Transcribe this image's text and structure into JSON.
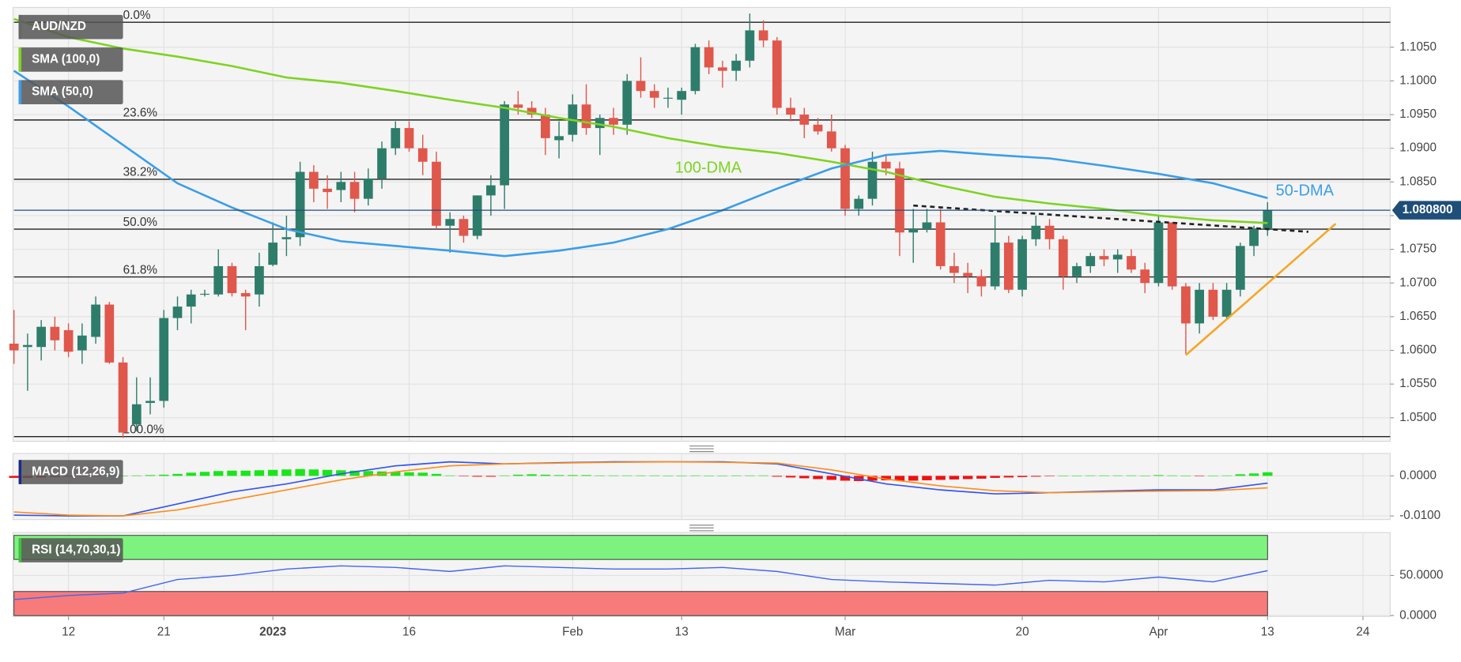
{
  "chart_data": [
    {
      "type": "candlestick",
      "title": "AUD/NZD",
      "title_color": "#666666",
      "xlim": [
        0,
        101
      ],
      "ylim": [
        1.0465,
        1.1109
      ],
      "grid": true,
      "yticks": [
        {
          "value": 1.05,
          "label": "1.0500"
        },
        {
          "value": 1.055,
          "label": "1.0550"
        },
        {
          "value": 1.06,
          "label": "1.0600"
        },
        {
          "value": 1.065,
          "label": "1.0650"
        },
        {
          "value": 1.07,
          "label": "1.0700"
        },
        {
          "value": 1.075,
          "label": "1.0750"
        },
        {
          "value": 1.08,
          "label": "1.0800"
        },
        {
          "value": 1.085,
          "label": "1.0850"
        },
        {
          "value": 1.09,
          "label": "1.0900"
        },
        {
          "value": 1.095,
          "label": "1.0950"
        },
        {
          "value": 1.1,
          "label": "1.1000"
        },
        {
          "value": 1.105,
          "label": "1.1050"
        }
      ],
      "up_color": "#2e7d6b",
      "down_color": "#e0574c",
      "open": [
        1.061,
        1.0605,
        1.0605,
        1.0635,
        1.063,
        1.06,
        1.062,
        1.0668,
        1.0582,
        1.049,
        1.0522,
        1.0525,
        1.0648,
        1.0665,
        1.0683,
        1.0683,
        1.0725,
        1.0685,
        1.0683,
        1.0727,
        1.0765,
        1.0768,
        1.0865,
        1.084,
        1.0838,
        1.085,
        1.0825,
        1.0855,
        1.09,
        1.093,
        1.09,
        1.088,
        1.0785,
        1.0795,
        1.077,
        1.083,
        1.0845,
        1.0965,
        1.096,
        1.095,
        1.0912,
        1.092,
        1.0965,
        1.093,
        1.0945,
        1.0935,
        1.1,
        1.0985,
        1.0975,
        1.0972,
        1.0985,
        1.105,
        1.102,
        1.1015,
        1.103,
        1.1075,
        1.106,
        1.096,
        1.095,
        1.0935,
        1.0925,
        1.09,
        1.081,
        1.0825,
        1.088,
        1.087,
        1.0775,
        1.078,
        1.079,
        1.0725,
        1.0715,
        1.071,
        1.0695,
        1.076,
        1.069,
        1.0765,
        1.0785,
        1.0765,
        1.071,
        1.0725,
        1.074,
        1.0735,
        1.074,
        1.072,
        1.07,
        1.079,
        1.0695,
        1.064,
        1.069,
        1.065,
        1.069,
        1.0755,
        1.078
      ],
      "high": [
        1.066,
        1.0625,
        1.0645,
        1.065,
        1.064,
        1.064,
        1.068,
        1.0672,
        1.059,
        1.056,
        1.056,
        1.066,
        1.068,
        1.069,
        1.069,
        1.075,
        1.073,
        1.069,
        1.0745,
        1.079,
        1.08,
        1.088,
        1.0875,
        1.086,
        1.0865,
        1.0865,
        1.087,
        1.091,
        1.094,
        1.094,
        1.092,
        1.0895,
        1.0805,
        1.08,
        1.083,
        1.086,
        1.097,
        1.0985,
        1.097,
        1.096,
        1.094,
        1.098,
        1.0995,
        1.095,
        1.096,
        1.101,
        1.1035,
        1.0995,
        1.099,
        1.099,
        1.1055,
        1.106,
        1.103,
        1.104,
        1.11,
        1.109,
        1.1065,
        1.0975,
        1.096,
        1.0945,
        1.095,
        1.0905,
        1.083,
        1.0895,
        1.089,
        1.088,
        1.081,
        1.081,
        1.081,
        1.0745,
        1.073,
        1.072,
        1.08,
        1.077,
        1.077,
        1.08,
        1.0795,
        1.077,
        1.073,
        1.0745,
        1.075,
        1.075,
        1.075,
        1.073,
        1.08,
        1.079,
        1.07,
        1.07,
        1.07,
        1.07,
        1.076,
        1.0785,
        1.082
      ],
      "low": [
        1.058,
        1.054,
        1.0585,
        1.06,
        1.059,
        1.058,
        1.061,
        1.058,
        1.047,
        1.048,
        1.0505,
        1.0515,
        1.063,
        1.064,
        1.068,
        1.068,
        1.068,
        1.063,
        1.0665,
        1.0725,
        1.074,
        1.0755,
        1.082,
        1.081,
        1.082,
        1.0805,
        1.0815,
        1.084,
        1.089,
        1.0895,
        1.086,
        1.078,
        1.0745,
        1.076,
        1.0765,
        1.08,
        1.081,
        1.095,
        1.0945,
        1.089,
        1.0885,
        1.091,
        1.092,
        1.089,
        1.092,
        1.092,
        1.0975,
        1.096,
        1.096,
        1.095,
        1.098,
        1.101,
        1.099,
        1.1,
        1.102,
        1.105,
        1.095,
        1.094,
        1.0915,
        1.092,
        1.0895,
        1.08,
        1.08,
        1.0815,
        1.086,
        1.074,
        1.073,
        1.0775,
        1.072,
        1.07,
        1.0685,
        1.068,
        1.069,
        1.0685,
        1.068,
        1.0755,
        1.075,
        1.069,
        1.07,
        1.0715,
        1.0725,
        1.0715,
        1.0715,
        1.0685,
        1.0695,
        1.069,
        1.0595,
        1.0625,
        1.0645,
        1.0645,
        1.068,
        1.074,
        1.077
      ],
      "close": [
        1.06,
        1.0608,
        1.0635,
        1.0615,
        1.0598,
        1.0622,
        1.0668,
        1.0582,
        1.0478,
        1.052,
        1.0525,
        1.0648,
        1.0665,
        1.0683,
        1.0684,
        1.0725,
        1.0685,
        1.068,
        1.0725,
        1.076,
        1.0768,
        1.0865,
        1.084,
        1.0835,
        1.085,
        1.0825,
        1.0855,
        1.09,
        1.093,
        1.09,
        1.088,
        1.0785,
        1.0795,
        1.077,
        1.083,
        1.0845,
        1.0965,
        1.096,
        1.095,
        1.0915,
        1.0918,
        1.0965,
        1.093,
        1.0945,
        1.0935,
        1.1,
        1.0985,
        1.0975,
        1.0975,
        1.0985,
        1.105,
        1.102,
        1.1015,
        1.103,
        1.1075,
        1.106,
        1.096,
        1.095,
        1.0935,
        1.0925,
        1.09,
        1.081,
        1.0825,
        1.088,
        1.087,
        1.0775,
        1.078,
        1.079,
        1.0725,
        1.0715,
        1.071,
        1.0695,
        1.076,
        1.069,
        1.0765,
        1.0785,
        1.0765,
        1.071,
        1.0725,
        1.074,
        1.0735,
        1.0742,
        1.072,
        1.07,
        1.079,
        1.0695,
        1.064,
        1.069,
        1.065,
        1.069,
        1.0755,
        1.078,
        1.0808
      ],
      "series": [
        {
          "name": "SMA (100,0)",
          "color": "#7ed321",
          "x": [
            0,
            4,
            8,
            12,
            16,
            20,
            24,
            28,
            32,
            36,
            40,
            44,
            48,
            52,
            56,
            60,
            64,
            68,
            72,
            76,
            80,
            84,
            88,
            92
          ],
          "values": [
            1.1092,
            1.1065,
            1.1048,
            1.1036,
            1.1022,
            1.1005,
            1.0997,
            1.0985,
            1.0972,
            1.096,
            1.0945,
            1.0932,
            1.0915,
            1.0902,
            1.0893,
            1.088,
            1.0865,
            1.0845,
            1.0828,
            1.0818,
            1.081,
            1.08,
            1.0793,
            1.0789
          ]
        },
        {
          "name": "SMA (50,0)",
          "color": "#3a9ee8",
          "x": [
            0,
            4,
            8,
            12,
            16,
            20,
            24,
            28,
            32,
            36,
            40,
            44,
            48,
            52,
            56,
            60,
            64,
            68,
            72,
            76,
            80,
            84,
            88,
            92
          ],
          "values": [
            1.1015,
            1.0962,
            1.0905,
            1.0848,
            1.0812,
            1.078,
            1.0762,
            1.0755,
            1.0748,
            1.074,
            1.0748,
            1.076,
            1.078,
            1.0808,
            1.084,
            1.087,
            1.089,
            1.0896,
            1.089,
            1.0885,
            1.0874,
            1.0862,
            1.0848,
            1.0826
          ]
        }
      ],
      "fibonacci": [
        {
          "label": "0.0%",
          "value": 1.1087
        },
        {
          "label": "23.6%",
          "value": 1.0942
        },
        {
          "label": "38.2%",
          "value": 1.0854
        },
        {
          "label": "50.0%",
          "value": 1.078
        },
        {
          "label": "61.8%",
          "value": 1.0709
        },
        {
          "label": "100.0%",
          "value": 1.0472
        }
      ],
      "last_price": {
        "value": 1.0808,
        "label": "1.080800",
        "color": "#1f4e79"
      },
      "trendlines": [
        {
          "color": "#222222",
          "dashed": true,
          "x": [
            66,
            95
          ],
          "values": [
            1.0815,
            1.0776
          ]
        },
        {
          "color": "#f5a623",
          "dashed": false,
          "x": [
            86,
            97
          ],
          "values": [
            1.0593,
            1.0788
          ]
        }
      ],
      "annotations": [
        {
          "text": "100-DMA",
          "x": 48.5,
          "y": 1.087,
          "color": "#7ed321"
        },
        {
          "text": "50-DMA",
          "x": 92.6,
          "y": 1.0836,
          "color": "#3a9ee8"
        }
      ]
    },
    {
      "type": "macd",
      "title": "MACD (12,26,9)",
      "title_color": "#1a2b8c",
      "xlim": [
        0,
        101
      ],
      "ylim": [
        -0.0109,
        0.0056
      ],
      "grid": true,
      "yticks": [
        {
          "value": 0,
          "label": "0.0000"
        },
        {
          "value": -0.01,
          "label": "-0.0100"
        }
      ],
      "histogram": {
        "up_color": "#19e619",
        "down_color": "#ee1111",
        "values": [
          -0.0005,
          -0.0005,
          -0.0004,
          -0.0003,
          -0.0002,
          -0.0001,
          -0.0001,
          0,
          0,
          0.0001,
          0.0002,
          0.0003,
          0.0005,
          0.0008,
          0.001,
          0.0012,
          0.0013,
          0.0013,
          0.0014,
          0.0015,
          0.0016,
          0.0017,
          0.0016,
          0.0015,
          0.0014,
          0.0013,
          0.0012,
          0.0011,
          0.001,
          0.0009,
          0.0008,
          0.0005,
          0.0001,
          -0.0001,
          -0.0002,
          -0.0002,
          0.0001,
          0.0003,
          0.0004,
          0.0003,
          0.0002,
          0.0002,
          0.0002,
          0.0001,
          0.0001,
          0.0001,
          0.0001,
          0.0001,
          0,
          0,
          0.0001,
          0,
          0,
          0.0001,
          0.0001,
          0.0001,
          -0.0002,
          -0.0004,
          -0.0006,
          -0.0008,
          -0.001,
          -0.0012,
          -0.0013,
          -0.0012,
          -0.0011,
          -0.0012,
          -0.0012,
          -0.0011,
          -0.001,
          -0.0009,
          -0.0008,
          -0.0007,
          -0.0005,
          -0.0004,
          -0.0003,
          -0.0002,
          -0.0001,
          0,
          0,
          0.0001,
          0.0001,
          0.0001,
          0.0001,
          0,
          0.0002,
          0.0001,
          0,
          -0.0001,
          0,
          0.0001,
          0.0004,
          0.0006,
          0.0009
        ]
      },
      "series": [
        {
          "color": "#3355ee",
          "x": [
            0,
            4,
            8,
            12,
            16,
            20,
            24,
            28,
            32,
            36,
            40,
            44,
            48,
            52,
            56,
            60,
            64,
            68,
            72,
            76,
            80,
            84,
            88,
            92
          ],
          "values": [
            -0.0098,
            -0.01,
            -0.01,
            -0.007,
            -0.004,
            -0.002,
            0.0005,
            0.0025,
            0.0035,
            0.003,
            0.0033,
            0.0035,
            0.0035,
            0.0035,
            0.003,
            0.0005,
            -0.002,
            -0.0035,
            -0.0045,
            -0.0042,
            -0.0038,
            -0.0035,
            -0.0035,
            -0.0018
          ]
        },
        {
          "color": "#ff8c1a",
          "x": [
            0,
            4,
            8,
            12,
            16,
            20,
            24,
            28,
            32,
            36,
            40,
            44,
            48,
            52,
            56,
            60,
            64,
            68,
            72,
            76,
            80,
            84,
            88,
            92
          ],
          "values": [
            -0.009,
            -0.0098,
            -0.01,
            -0.0085,
            -0.006,
            -0.0035,
            -0.001,
            0.001,
            0.0025,
            0.003,
            0.0032,
            0.0034,
            0.0035,
            0.0034,
            0.0032,
            0.0015,
            -0.0008,
            -0.0025,
            -0.0037,
            -0.0042,
            -0.004,
            -0.0038,
            -0.0037,
            -0.003
          ]
        }
      ]
    },
    {
      "type": "rsi",
      "title": "RSI (14,70,30,1)",
      "title_color": "#3fbf3f",
      "xlim": [
        0,
        101
      ],
      "ylim": [
        -1,
        103.5
      ],
      "grid": true,
      "yticks": [
        {
          "value": 50,
          "label": "50.0000"
        },
        {
          "value": 0,
          "label": "0.0000"
        }
      ],
      "bands": [
        {
          "range": [
            70,
            100
          ],
          "color": "#7ef27e"
        },
        {
          "range": [
            0,
            30
          ],
          "color": "#f77b7b"
        }
      ],
      "series": [
        {
          "color": "#4466ee",
          "x": [
            0,
            4,
            8,
            12,
            16,
            20,
            24,
            28,
            32,
            36,
            40,
            44,
            48,
            52,
            56,
            60,
            64,
            68,
            72,
            76,
            80,
            84,
            88,
            92
          ],
          "values": [
            20,
            25,
            28,
            45,
            50,
            58,
            62,
            60,
            55,
            62,
            60,
            58,
            58,
            60,
            55,
            45,
            42,
            40,
            38,
            44,
            42,
            48,
            42,
            56
          ]
        }
      ],
      "xticks": [
        {
          "value": 4,
          "label": "12"
        },
        {
          "value": 11,
          "label": "21"
        },
        {
          "value": 19,
          "label": "2023"
        },
        {
          "value": 29,
          "label": "16"
        },
        {
          "value": 41,
          "label": "Feb"
        },
        {
          "value": 49,
          "label": "13"
        },
        {
          "value": 61,
          "label": "Mar"
        },
        {
          "value": 74,
          "label": "20"
        },
        {
          "value": 84,
          "label": "Apr"
        },
        {
          "value": 92,
          "label": "13"
        },
        {
          "value": 99,
          "label": "24"
        }
      ]
    }
  ]
}
